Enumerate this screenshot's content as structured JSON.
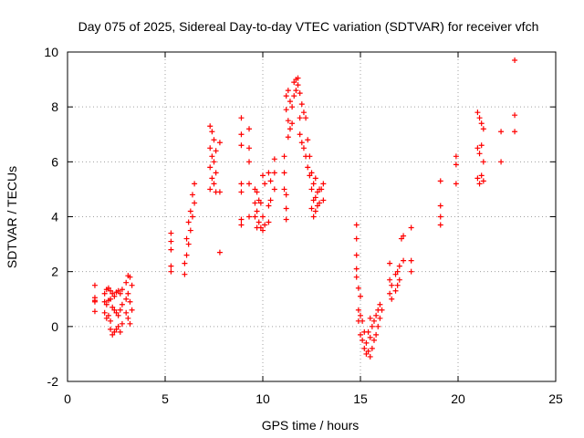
{
  "chart_data": {
    "type": "scatter",
    "title": "Day 075 of 2025, Sidereal Day-to-day VTEC variation (SDTVAR) for receiver vfch",
    "xlabel": "GPS time / hours",
    "ylabel": "SDTVAR / TECUs",
    "xlim": [
      0,
      25
    ],
    "ylim": [
      -2,
      10
    ],
    "xticks": [
      0,
      5,
      10,
      15,
      20,
      25
    ],
    "yticks": [
      -2,
      0,
      2,
      4,
      6,
      8,
      10
    ],
    "grid": true,
    "marker": "+",
    "marker_color": "#ff0000",
    "series": [
      {
        "name": "SDTVAR",
        "points": [
          [
            1.4,
            1.5
          ],
          [
            1.4,
            1.05
          ],
          [
            1.4,
            0.95
          ],
          [
            1.4,
            0.9
          ],
          [
            1.4,
            0.55
          ],
          [
            1.9,
            1.2
          ],
          [
            1.9,
            0.9
          ],
          [
            1.9,
            0.5
          ],
          [
            2.0,
            1.35
          ],
          [
            2.0,
            0.8
          ],
          [
            2.0,
            0.3
          ],
          [
            2.1,
            1.4
          ],
          [
            2.1,
            0.95
          ],
          [
            2.1,
            0.4
          ],
          [
            2.2,
            1.3
          ],
          [
            2.2,
            1.0
          ],
          [
            2.2,
            0.2
          ],
          [
            2.2,
            -0.1
          ],
          [
            2.3,
            1.2
          ],
          [
            2.3,
            0.7
          ],
          [
            2.3,
            -0.3
          ],
          [
            2.4,
            1.1
          ],
          [
            2.4,
            0.6
          ],
          [
            2.4,
            -0.2
          ],
          [
            2.5,
            1.25
          ],
          [
            2.5,
            0.5
          ],
          [
            2.5,
            -0.1
          ],
          [
            2.6,
            1.3
          ],
          [
            2.6,
            0.4
          ],
          [
            2.6,
            0.0
          ],
          [
            2.7,
            1.2
          ],
          [
            2.7,
            0.6
          ],
          [
            2.7,
            -0.2
          ],
          [
            2.8,
            1.35
          ],
          [
            2.8,
            0.8
          ],
          [
            2.8,
            0.1
          ],
          [
            3.0,
            1.6
          ],
          [
            3.0,
            1.0
          ],
          [
            3.0,
            0.5
          ],
          [
            3.1,
            1.85
          ],
          [
            3.1,
            1.2
          ],
          [
            3.1,
            0.3
          ],
          [
            3.2,
            1.8
          ],
          [
            3.2,
            0.9
          ],
          [
            3.2,
            0.1
          ],
          [
            3.3,
            1.5
          ],
          [
            3.3,
            0.6
          ],
          [
            5.3,
            3.4
          ],
          [
            5.3,
            3.1
          ],
          [
            5.3,
            2.8
          ],
          [
            5.3,
            2.2
          ],
          [
            5.3,
            2.0
          ],
          [
            6.0,
            1.9
          ],
          [
            6.0,
            2.3
          ],
          [
            6.1,
            2.6
          ],
          [
            6.1,
            3.2
          ],
          [
            6.2,
            3.0
          ],
          [
            6.2,
            3.8
          ],
          [
            6.3,
            3.5
          ],
          [
            6.3,
            4.2
          ],
          [
            6.4,
            4.0
          ],
          [
            6.4,
            4.8
          ],
          [
            6.5,
            4.5
          ],
          [
            6.5,
            5.2
          ],
          [
            7.3,
            7.3
          ],
          [
            7.3,
            6.5
          ],
          [
            7.3,
            5.8
          ],
          [
            7.3,
            5.0
          ],
          [
            7.4,
            7.1
          ],
          [
            7.4,
            6.2
          ],
          [
            7.4,
            5.4
          ],
          [
            7.5,
            6.8
          ],
          [
            7.5,
            6.0
          ],
          [
            7.5,
            5.2
          ],
          [
            7.6,
            6.4
          ],
          [
            7.6,
            5.6
          ],
          [
            7.6,
            4.9
          ],
          [
            7.8,
            6.7
          ],
          [
            7.8,
            4.9
          ],
          [
            7.8,
            2.7
          ],
          [
            8.9,
            7.6
          ],
          [
            8.9,
            7.0
          ],
          [
            8.9,
            6.6
          ],
          [
            8.9,
            5.2
          ],
          [
            8.9,
            4.9
          ],
          [
            8.9,
            3.9
          ],
          [
            8.9,
            3.7
          ],
          [
            9.3,
            7.2
          ],
          [
            9.3,
            6.5
          ],
          [
            9.3,
            6.0
          ],
          [
            9.3,
            5.2
          ],
          [
            9.3,
            4.0
          ],
          [
            9.6,
            5.0
          ],
          [
            9.6,
            4.5
          ],
          [
            9.6,
            4.0
          ],
          [
            9.7,
            4.9
          ],
          [
            9.7,
            4.2
          ],
          [
            9.7,
            3.6
          ],
          [
            9.8,
            4.6
          ],
          [
            9.8,
            3.8
          ],
          [
            9.9,
            4.5
          ],
          [
            9.9,
            3.6
          ],
          [
            10.0,
            5.5
          ],
          [
            10.0,
            4.0
          ],
          [
            10.0,
            3.5
          ],
          [
            10.1,
            5.2
          ],
          [
            10.1,
            3.7
          ],
          [
            10.3,
            5.6
          ],
          [
            10.3,
            4.4
          ],
          [
            10.3,
            3.8
          ],
          [
            10.4,
            5.3
          ],
          [
            10.4,
            4.6
          ],
          [
            10.6,
            6.1
          ],
          [
            10.6,
            5.6
          ],
          [
            10.6,
            5.0
          ],
          [
            11.1,
            6.2
          ],
          [
            11.1,
            5.6
          ],
          [
            11.1,
            5.0
          ],
          [
            11.2,
            4.8
          ],
          [
            11.2,
            4.3
          ],
          [
            11.2,
            3.9
          ],
          [
            11.2,
            8.4
          ],
          [
            11.2,
            7.9
          ],
          [
            11.3,
            8.6
          ],
          [
            11.3,
            7.5
          ],
          [
            11.3,
            6.9
          ],
          [
            11.4,
            8.2
          ],
          [
            11.4,
            7.2
          ],
          [
            11.5,
            8.0
          ],
          [
            11.5,
            7.4
          ],
          [
            11.6,
            8.9
          ],
          [
            11.6,
            8.4
          ],
          [
            11.7,
            9.0
          ],
          [
            11.7,
            8.6
          ],
          [
            11.8,
            9.05
          ],
          [
            11.8,
            8.8
          ],
          [
            11.9,
            8.5
          ],
          [
            11.9,
            7.6
          ],
          [
            11.9,
            7.0
          ],
          [
            12.0,
            8.1
          ],
          [
            12.0,
            6.7
          ],
          [
            12.1,
            7.8
          ],
          [
            12.1,
            6.5
          ],
          [
            12.2,
            7.6
          ],
          [
            12.2,
            6.2
          ],
          [
            12.3,
            6.8
          ],
          [
            12.3,
            5.8
          ],
          [
            12.4,
            6.2
          ],
          [
            12.4,
            5.5
          ],
          [
            12.5,
            5.6
          ],
          [
            12.5,
            5.0
          ],
          [
            12.5,
            4.3
          ],
          [
            12.6,
            5.2
          ],
          [
            12.6,
            4.6
          ],
          [
            12.6,
            4.0
          ],
          [
            12.7,
            5.4
          ],
          [
            12.7,
            4.7
          ],
          [
            12.7,
            4.2
          ],
          [
            12.8,
            4.9
          ],
          [
            12.8,
            4.4
          ],
          [
            12.9,
            5.0
          ],
          [
            12.9,
            4.5
          ],
          [
            13.0,
            5.0
          ],
          [
            13.1,
            5.2
          ],
          [
            13.1,
            4.6
          ],
          [
            14.8,
            3.7
          ],
          [
            14.8,
            3.2
          ],
          [
            14.8,
            2.6
          ],
          [
            14.8,
            2.1
          ],
          [
            14.8,
            1.8
          ],
          [
            14.9,
            1.4
          ],
          [
            14.9,
            0.6
          ],
          [
            14.9,
            0.2
          ],
          [
            15.0,
            1.1
          ],
          [
            15.0,
            0.4
          ],
          [
            15.0,
            -0.3
          ],
          [
            15.1,
            0.2
          ],
          [
            15.1,
            -0.5
          ],
          [
            15.2,
            -0.2
          ],
          [
            15.2,
            -0.8
          ],
          [
            15.3,
            -0.6
          ],
          [
            15.3,
            -1.0
          ],
          [
            15.4,
            -0.9
          ],
          [
            15.4,
            -0.2
          ],
          [
            15.5,
            -1.1
          ],
          [
            15.5,
            -0.4
          ],
          [
            15.5,
            0.3
          ],
          [
            15.6,
            -0.8
          ],
          [
            15.6,
            0.0
          ],
          [
            15.7,
            -0.5
          ],
          [
            15.7,
            0.2
          ],
          [
            15.8,
            -0.3
          ],
          [
            15.8,
            0.4
          ],
          [
            15.9,
            0.0
          ],
          [
            15.9,
            0.6
          ],
          [
            16.0,
            0.3
          ],
          [
            16.0,
            0.8
          ],
          [
            16.1,
            0.6
          ],
          [
            16.5,
            2.3
          ],
          [
            16.5,
            1.7
          ],
          [
            16.5,
            1.2
          ],
          [
            16.6,
            1.5
          ],
          [
            16.6,
            1.0
          ],
          [
            16.8,
            1.9
          ],
          [
            16.8,
            1.3
          ],
          [
            16.9,
            2.0
          ],
          [
            16.9,
            1.5
          ],
          [
            17.0,
            2.2
          ],
          [
            17.0,
            1.7
          ],
          [
            17.1,
            3.2
          ],
          [
            17.2,
            3.3
          ],
          [
            17.2,
            2.4
          ],
          [
            17.6,
            3.6
          ],
          [
            17.6,
            2.4
          ],
          [
            17.6,
            2.0
          ],
          [
            19.1,
            5.3
          ],
          [
            19.1,
            4.4
          ],
          [
            19.1,
            4.0
          ],
          [
            19.1,
            3.7
          ],
          [
            19.9,
            6.2
          ],
          [
            19.9,
            5.9
          ],
          [
            19.9,
            5.2
          ],
          [
            21.0,
            7.8
          ],
          [
            21.0,
            6.5
          ],
          [
            21.0,
            5.4
          ],
          [
            21.1,
            7.6
          ],
          [
            21.1,
            6.3
          ],
          [
            21.1,
            5.2
          ],
          [
            21.2,
            7.4
          ],
          [
            21.2,
            6.6
          ],
          [
            21.2,
            5.5
          ],
          [
            21.3,
            7.2
          ],
          [
            21.3,
            6.0
          ],
          [
            21.3,
            5.3
          ],
          [
            22.2,
            7.1
          ],
          [
            22.2,
            6.0
          ],
          [
            22.9,
            9.7
          ],
          [
            22.9,
            7.7
          ],
          [
            22.9,
            7.1
          ]
        ]
      }
    ]
  }
}
